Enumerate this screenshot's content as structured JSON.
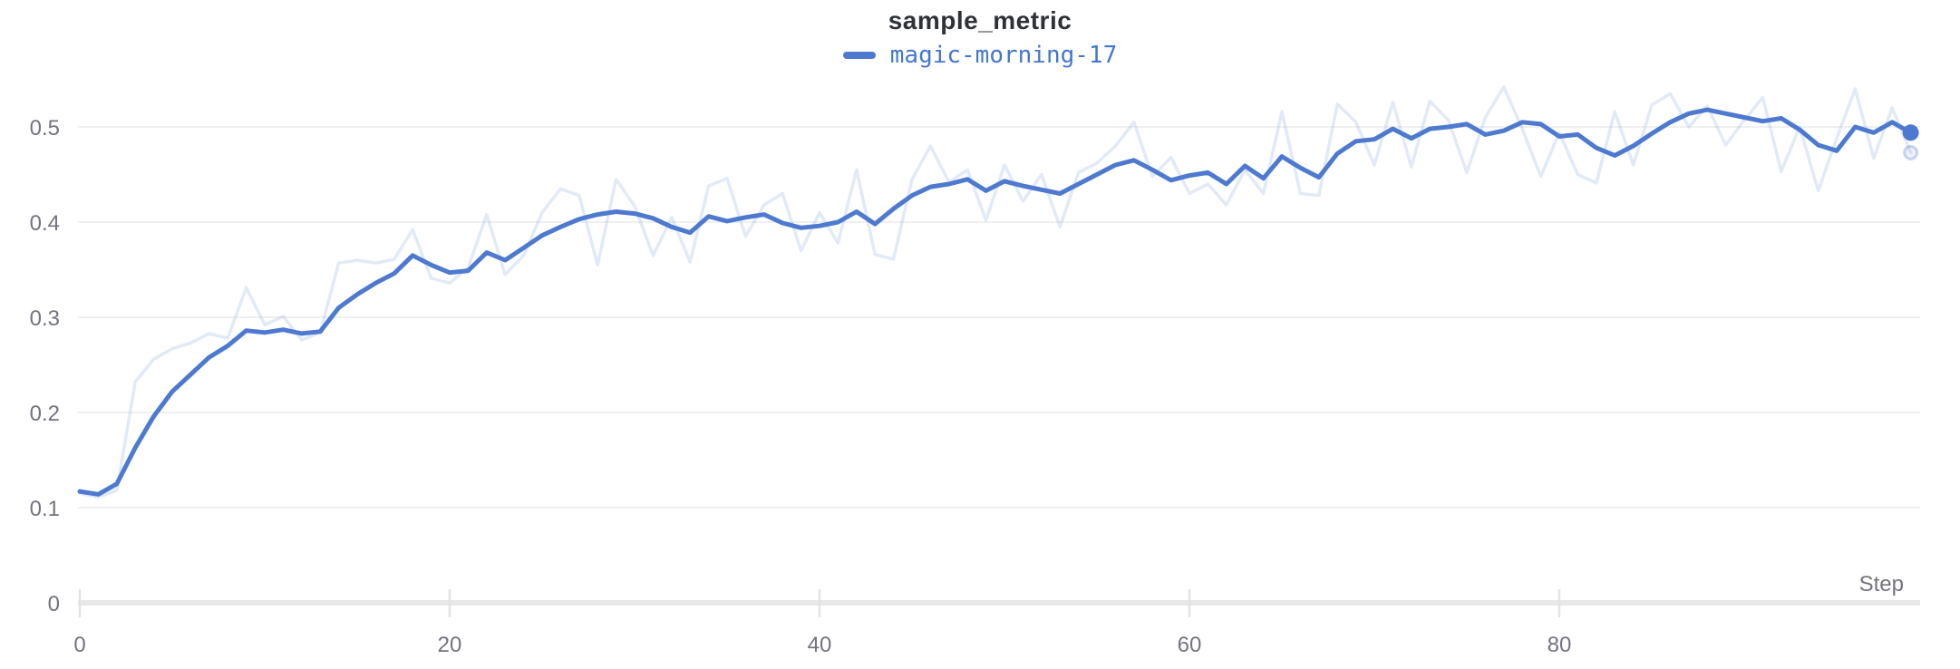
{
  "header": {
    "title": "sample_metric"
  },
  "legend": {
    "series_label": "magic-morning-17",
    "swatch_icon": "line-dash-icon",
    "color": "#4d7ad0"
  },
  "axes": {
    "x_label": "Step",
    "x_tick_labels": [
      "0",
      "20",
      "40",
      "60",
      "80"
    ],
    "x_tick_values": [
      0,
      20,
      40,
      60,
      80
    ],
    "y_tick_labels": [
      "0",
      "0.1",
      "0.2",
      "0.3",
      "0.4",
      "0.5"
    ],
    "y_tick_values": [
      0,
      0.1,
      0.2,
      0.3,
      0.4,
      0.5
    ]
  },
  "colors": {
    "line": "#4d7ad0",
    "raw_line": "rgba(77,122,208,0.16)",
    "gridline": "#ececec",
    "axis_bar": "#e8e8e8",
    "tick_mark": "#e3e3e6",
    "tick_text": "#73737e",
    "title_text": "#2e3137",
    "background": "#ffffff"
  },
  "chart_data": {
    "type": "line",
    "title": "sample_metric",
    "xlabel": "Step",
    "ylabel": "",
    "x_range": [
      0,
      99
    ],
    "ylim": [
      0,
      0.55
    ],
    "x_ticks": [
      0,
      20,
      40,
      60,
      80
    ],
    "y_ticks": [
      0,
      0.1,
      0.2,
      0.3,
      0.4,
      0.5
    ],
    "grid": "horizontal",
    "legend_position": "top-center",
    "series": [
      {
        "name": "magic-morning-17 (raw)",
        "role": "raw",
        "end_marker": "ghost-dot",
        "values": [
          0.115,
          0.111,
          0.118,
          0.232,
          0.256,
          0.267,
          0.273,
          0.283,
          0.278,
          0.331,
          0.292,
          0.301,
          0.276,
          0.284,
          0.357,
          0.36,
          0.357,
          0.361,
          0.392,
          0.341,
          0.336,
          0.352,
          0.408,
          0.345,
          0.365,
          0.41,
          0.435,
          0.428,
          0.355,
          0.445,
          0.417,
          0.365,
          0.405,
          0.358,
          0.438,
          0.446,
          0.385,
          0.418,
          0.43,
          0.37,
          0.41,
          0.378,
          0.455,
          0.366,
          0.361,
          0.445,
          0.48,
          0.442,
          0.455,
          0.402,
          0.46,
          0.422,
          0.45,
          0.395,
          0.452,
          0.462,
          0.48,
          0.505,
          0.448,
          0.468,
          0.43,
          0.44,
          0.418,
          0.455,
          0.43,
          0.516,
          0.43,
          0.428,
          0.524,
          0.505,
          0.46,
          0.526,
          0.458,
          0.527,
          0.507,
          0.452,
          0.51,
          0.542,
          0.498,
          0.448,
          0.494,
          0.45,
          0.441,
          0.516,
          0.46,
          0.523,
          0.535,
          0.5,
          0.522,
          0.481,
          0.507,
          0.531,
          0.453,
          0.5,
          0.433,
          0.488,
          0.54,
          0.467,
          0.52,
          0.473
        ]
      },
      {
        "name": "magic-morning-17",
        "role": "smoothed",
        "end_marker": "dot",
        "values": [
          0.117,
          0.114,
          0.125,
          0.163,
          0.196,
          0.222,
          0.24,
          0.258,
          0.27,
          0.286,
          0.284,
          0.287,
          0.283,
          0.285,
          0.31,
          0.324,
          0.336,
          0.346,
          0.365,
          0.355,
          0.347,
          0.349,
          0.368,
          0.36,
          0.373,
          0.386,
          0.395,
          0.403,
          0.408,
          0.411,
          0.409,
          0.404,
          0.395,
          0.389,
          0.406,
          0.401,
          0.405,
          0.408,
          0.399,
          0.394,
          0.396,
          0.4,
          0.411,
          0.398,
          0.414,
          0.428,
          0.437,
          0.44,
          0.445,
          0.433,
          0.443,
          0.438,
          0.434,
          0.43,
          0.44,
          0.45,
          0.46,
          0.465,
          0.455,
          0.444,
          0.449,
          0.452,
          0.44,
          0.459,
          0.446,
          0.469,
          0.457,
          0.447,
          0.472,
          0.485,
          0.487,
          0.498,
          0.488,
          0.498,
          0.5,
          0.503,
          0.492,
          0.496,
          0.505,
          0.503,
          0.49,
          0.492,
          0.478,
          0.47,
          0.48,
          0.493,
          0.505,
          0.514,
          0.518,
          0.514,
          0.51,
          0.506,
          0.509,
          0.497,
          0.481,
          0.475,
          0.5,
          0.494,
          0.505,
          0.494
        ]
      }
    ]
  }
}
